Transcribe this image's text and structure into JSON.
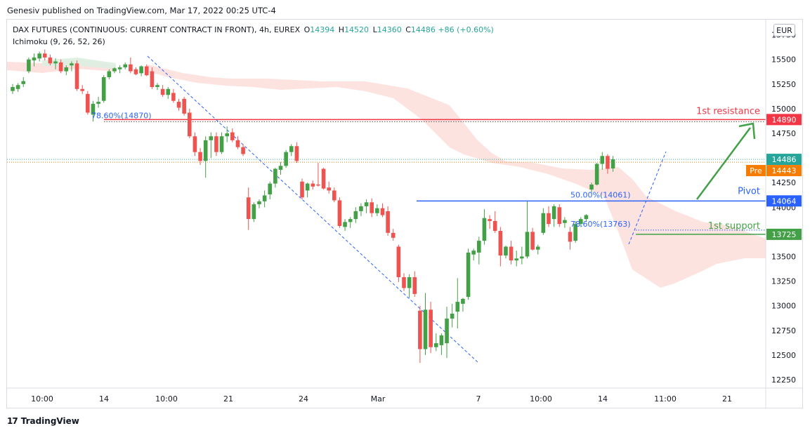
{
  "header": {
    "published": "Genesiv published on TradingView.com, Mar 17, 2022 00:25 UTC-4",
    "symbol_line": "DAX FUTURES (CONTINUOUS: CURRENT CONTRACT IN FRONT), 4h, EUREX",
    "ohlc": {
      "o_label": "O",
      "o": "14394",
      "h_label": "H",
      "h": "14520",
      "l_label": "L",
      "l": "14360",
      "c_label": "C",
      "c": "14486",
      "change": "+86 (+0.60%)"
    },
    "indicator": "Ichimoku (9, 26, 52, 26)",
    "currency": "EUR"
  },
  "footer": {
    "brand": "TradingView"
  },
  "chart_data": {
    "type": "candlestick",
    "y_ticks": [
      12250,
      12500,
      12750,
      13000,
      13250,
      13500,
      13750,
      14000,
      14250,
      14500,
      14750,
      15000,
      15250,
      15500,
      15750
    ],
    "ylim": [
      12150,
      15800
    ],
    "x_ticks": [
      "10:00",
      "14",
      "10:00",
      "21",
      "24",
      "Mar",
      "7",
      "10:00",
      "14",
      "11:00",
      "21"
    ],
    "price_labels": [
      {
        "text": "14890",
        "color": "#f23645"
      },
      {
        "text": "14486",
        "color": "#26a69a"
      },
      {
        "text": "Pre",
        "value_text": "14443",
        "color": "#f57c00"
      },
      {
        "text": "14064",
        "color": "#2962ff"
      },
      {
        "text": "13725",
        "color": "#43a047"
      }
    ],
    "annotations": {
      "resistance": "1st resistance",
      "pivot": "Pivot",
      "support": "1st support",
      "fib1": "78.60%(14870)",
      "fib2": "50.00%(14061)",
      "fib3": "78.60%(13763)"
    },
    "levels": {
      "resistance": 14890,
      "pivot": 14064,
      "support": 13725,
      "last": 14486,
      "pre": 14443,
      "fib_left": 14870
    },
    "colors": {
      "up": "#43a047",
      "down": "#ef5350",
      "cloud_bear": "#fcd9d6",
      "cloud_bull": "#dcefe0",
      "resistance": "#f23645",
      "pivot": "#2962ff",
      "support": "#43a047",
      "arrow": "#43a047",
      "fib": "#2962ff"
    },
    "candles": [
      {
        "o": 15180,
        "h": 15250,
        "l": 15150,
        "c": 15220
      },
      {
        "o": 15200,
        "h": 15260,
        "l": 15170,
        "c": 15240
      },
      {
        "o": 15250,
        "h": 15320,
        "l": 15220,
        "c": 15280
      },
      {
        "o": 15380,
        "h": 15520,
        "l": 15360,
        "c": 15500
      },
      {
        "o": 15490,
        "h": 15560,
        "l": 15430,
        "c": 15520
      },
      {
        "o": 15510,
        "h": 15580,
        "l": 15480,
        "c": 15560
      },
      {
        "o": 15560,
        "h": 15600,
        "l": 15490,
        "c": 15520
      },
      {
        "o": 15520,
        "h": 15550,
        "l": 15440,
        "c": 15460
      },
      {
        "o": 15460,
        "h": 15510,
        "l": 15400,
        "c": 15480
      },
      {
        "o": 15470,
        "h": 15500,
        "l": 15360,
        "c": 15380
      },
      {
        "o": 15380,
        "h": 15440,
        "l": 15340,
        "c": 15420
      },
      {
        "o": 15440,
        "h": 15480,
        "l": 15380,
        "c": 15460
      },
      {
        "o": 15460,
        "h": 15490,
        "l": 15180,
        "c": 15200
      },
      {
        "o": 15200,
        "h": 15240,
        "l": 15150,
        "c": 15180
      },
      {
        "o": 15150,
        "h": 15180,
        "l": 14940,
        "c": 14960
      },
      {
        "o": 14940,
        "h": 15080,
        "l": 14870,
        "c": 15050
      },
      {
        "o": 15050,
        "h": 15120,
        "l": 15010,
        "c": 15070
      },
      {
        "o": 15080,
        "h": 15340,
        "l": 15060,
        "c": 15320
      },
      {
        "o": 15320,
        "h": 15400,
        "l": 15300,
        "c": 15380
      },
      {
        "o": 15380,
        "h": 15420,
        "l": 15360,
        "c": 15410
      },
      {
        "o": 15400,
        "h": 15440,
        "l": 15360,
        "c": 15420
      },
      {
        "o": 15420,
        "h": 15470,
        "l": 15400,
        "c": 15450
      },
      {
        "o": 15450,
        "h": 15520,
        "l": 15360,
        "c": 15380
      },
      {
        "o": 15400,
        "h": 15420,
        "l": 15340,
        "c": 15350
      },
      {
        "o": 15360,
        "h": 15440,
        "l": 15330,
        "c": 15430
      },
      {
        "o": 15430,
        "h": 15450,
        "l": 15330,
        "c": 15340
      },
      {
        "o": 15380,
        "h": 15420,
        "l": 15200,
        "c": 15220
      },
      {
        "o": 15220,
        "h": 15260,
        "l": 15190,
        "c": 15240
      },
      {
        "o": 15200,
        "h": 15240,
        "l": 15120,
        "c": 15140
      },
      {
        "o": 15140,
        "h": 15220,
        "l": 15100,
        "c": 15200
      },
      {
        "o": 15160,
        "h": 15200,
        "l": 15060,
        "c": 15080
      },
      {
        "o": 15070,
        "h": 15100,
        "l": 14980,
        "c": 15010
      },
      {
        "o": 15100,
        "h": 15120,
        "l": 14930,
        "c": 14950
      },
      {
        "o": 14960,
        "h": 15000,
        "l": 14700,
        "c": 14720
      },
      {
        "o": 14720,
        "h": 14760,
        "l": 14520,
        "c": 14560
      },
      {
        "o": 14560,
        "h": 14600,
        "l": 14430,
        "c": 14470
      },
      {
        "o": 14470,
        "h": 14720,
        "l": 14300,
        "c": 14680
      },
      {
        "o": 14680,
        "h": 14760,
        "l": 14500,
        "c": 14720
      },
      {
        "o": 14720,
        "h": 14760,
        "l": 14520,
        "c": 14560
      },
      {
        "o": 14560,
        "h": 14760,
        "l": 14540,
        "c": 14720
      },
      {
        "o": 14720,
        "h": 14820,
        "l": 14660,
        "c": 14750
      },
      {
        "o": 14760,
        "h": 14800,
        "l": 14660,
        "c": 14680
      },
      {
        "o": 14680,
        "h": 14720,
        "l": 14590,
        "c": 14610
      },
      {
        "o": 14610,
        "h": 14640,
        "l": 14520,
        "c": 14540
      },
      {
        "o": 14100,
        "h": 14200,
        "l": 13770,
        "c": 13880
      },
      {
        "o": 13880,
        "h": 14050,
        "l": 13850,
        "c": 14030
      },
      {
        "o": 14030,
        "h": 14080,
        "l": 13990,
        "c": 14060
      },
      {
        "o": 14060,
        "h": 14170,
        "l": 14000,
        "c": 14120
      },
      {
        "o": 14130,
        "h": 14260,
        "l": 14080,
        "c": 14240
      },
      {
        "o": 14240,
        "h": 14400,
        "l": 14200,
        "c": 14390
      },
      {
        "o": 14380,
        "h": 14460,
        "l": 14330,
        "c": 14420
      },
      {
        "o": 14420,
        "h": 14580,
        "l": 14400,
        "c": 14560
      },
      {
        "o": 14560,
        "h": 14640,
        "l": 14520,
        "c": 14620
      },
      {
        "o": 14620,
        "h": 14660,
        "l": 14450,
        "c": 14470
      },
      {
        "o": 14260,
        "h": 14290,
        "l": 14080,
        "c": 14100
      },
      {
        "o": 14170,
        "h": 14250,
        "l": 14100,
        "c": 14240
      },
      {
        "o": 14240,
        "h": 14270,
        "l": 14180,
        "c": 14210
      },
      {
        "o": 14230,
        "h": 14450,
        "l": 14210,
        "c": 14220
      },
      {
        "o": 14390,
        "h": 14400,
        "l": 14180,
        "c": 14190
      },
      {
        "o": 14200,
        "h": 14260,
        "l": 14140,
        "c": 14170
      },
      {
        "o": 14170,
        "h": 14200,
        "l": 14050,
        "c": 14070
      },
      {
        "o": 14070,
        "h": 14100,
        "l": 13790,
        "c": 13810
      },
      {
        "o": 13800,
        "h": 13880,
        "l": 13760,
        "c": 13850
      },
      {
        "o": 13850,
        "h": 13900,
        "l": 13790,
        "c": 13880
      },
      {
        "o": 13880,
        "h": 14000,
        "l": 13840,
        "c": 13960
      },
      {
        "o": 13960,
        "h": 14040,
        "l": 13910,
        "c": 14010
      },
      {
        "o": 14010,
        "h": 14080,
        "l": 13940,
        "c": 14050
      },
      {
        "o": 14050,
        "h": 14090,
        "l": 13900,
        "c": 13940
      },
      {
        "o": 13940,
        "h": 14030,
        "l": 13910,
        "c": 13990
      },
      {
        "o": 13990,
        "h": 14040,
        "l": 13900,
        "c": 13920
      },
      {
        "o": 13960,
        "h": 14010,
        "l": 13710,
        "c": 13740
      },
      {
        "o": 13740,
        "h": 13780,
        "l": 13660,
        "c": 13690
      },
      {
        "o": 13600,
        "h": 13620,
        "l": 13240,
        "c": 13290
      },
      {
        "o": 13290,
        "h": 13330,
        "l": 13150,
        "c": 13180
      },
      {
        "o": 13180,
        "h": 13320,
        "l": 13080,
        "c": 13290
      },
      {
        "o": 13290,
        "h": 13350,
        "l": 13090,
        "c": 13120
      },
      {
        "o": 12950,
        "h": 13000,
        "l": 12420,
        "c": 12560
      },
      {
        "o": 12560,
        "h": 13130,
        "l": 12500,
        "c": 12960
      },
      {
        "o": 12960,
        "h": 13040,
        "l": 12520,
        "c": 12580
      },
      {
        "o": 12580,
        "h": 12720,
        "l": 12540,
        "c": 12620
      },
      {
        "o": 12600,
        "h": 12720,
        "l": 12500,
        "c": 12700
      },
      {
        "o": 12620,
        "h": 12990,
        "l": 12470,
        "c": 12870
      },
      {
        "o": 12870,
        "h": 13020,
        "l": 12780,
        "c": 12920
      },
      {
        "o": 12940,
        "h": 13280,
        "l": 12770,
        "c": 13040
      },
      {
        "o": 13020,
        "h": 13080,
        "l": 12940,
        "c": 13070
      },
      {
        "o": 13090,
        "h": 13580,
        "l": 13060,
        "c": 13540
      },
      {
        "o": 13520,
        "h": 13580,
        "l": 13460,
        "c": 13560
      },
      {
        "o": 13540,
        "h": 13700,
        "l": 13420,
        "c": 13660
      },
      {
        "o": 13660,
        "h": 13980,
        "l": 13620,
        "c": 13890
      },
      {
        "o": 13880,
        "h": 13920,
        "l": 13780,
        "c": 13860
      },
      {
        "o": 13860,
        "h": 13960,
        "l": 13740,
        "c": 13760
      },
      {
        "o": 13760,
        "h": 13800,
        "l": 13400,
        "c": 13510
      },
      {
        "o": 13510,
        "h": 13610,
        "l": 13480,
        "c": 13600
      },
      {
        "o": 13600,
        "h": 13660,
        "l": 13420,
        "c": 13460
      },
      {
        "o": 13460,
        "h": 13560,
        "l": 13400,
        "c": 13480
      },
      {
        "o": 13480,
        "h": 13600,
        "l": 13420,
        "c": 13500
      },
      {
        "o": 13500,
        "h": 14060,
        "l": 13480,
        "c": 13750
      },
      {
        "o": 13750,
        "h": 13790,
        "l": 13560,
        "c": 13570
      },
      {
        "o": 13570,
        "h": 13620,
        "l": 13520,
        "c": 13600
      },
      {
        "o": 13740,
        "h": 13990,
        "l": 13720,
        "c": 13940
      },
      {
        "o": 13940,
        "h": 14010,
        "l": 13800,
        "c": 13830
      },
      {
        "o": 13880,
        "h": 14030,
        "l": 13800,
        "c": 14010
      },
      {
        "o": 14000,
        "h": 14030,
        "l": 13800,
        "c": 13830
      },
      {
        "o": 13840,
        "h": 13900,
        "l": 13790,
        "c": 13870
      },
      {
        "o": 13750,
        "h": 13800,
        "l": 13570,
        "c": 13650
      },
      {
        "o": 13660,
        "h": 13860,
        "l": 13640,
        "c": 13830
      },
      {
        "o": 13830,
        "h": 13900,
        "l": 13800,
        "c": 13880
      },
      {
        "o": 13880,
        "h": 13930,
        "l": 13850,
        "c": 13920
      },
      {
        "o": 14180,
        "h": 14250,
        "l": 14150,
        "c": 14230
      },
      {
        "o": 14230,
        "h": 14450,
        "l": 14220,
        "c": 14440
      },
      {
        "o": 14440,
        "h": 14560,
        "l": 14380,
        "c": 14520
      },
      {
        "o": 14520,
        "h": 14540,
        "l": 14340,
        "c": 14390
      },
      {
        "o": 14394,
        "h": 14520,
        "l": 14360,
        "c": 14486
      }
    ]
  }
}
